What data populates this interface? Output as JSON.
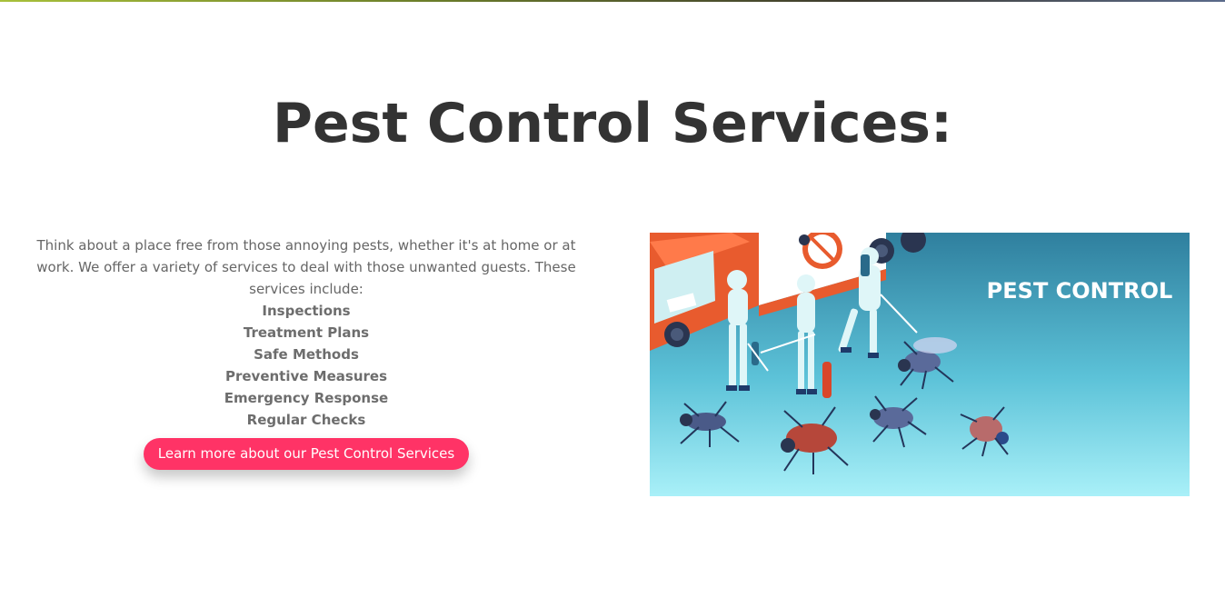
{
  "section": {
    "title": "Pest Control Services:",
    "intro": "Think about a place free from those annoying pests, whether it's at home or at work. We offer a variety of services to deal with those unwanted guests. These services include:",
    "services": [
      "Inspections",
      "Treatment Plans",
      "Safe Methods",
      "Preventive Measures",
      "Emergency Response",
      "Regular Checks"
    ],
    "cta_label": "Learn more about our Pest Control Services"
  },
  "illustration": {
    "banner_text": "PEST CONTROL"
  },
  "colors": {
    "accent": "#ff3366",
    "title": "#333333",
    "body_text": "#666666",
    "image_bg_top": "#2f7f9e",
    "image_bg_bottom": "#a9f0f8"
  }
}
